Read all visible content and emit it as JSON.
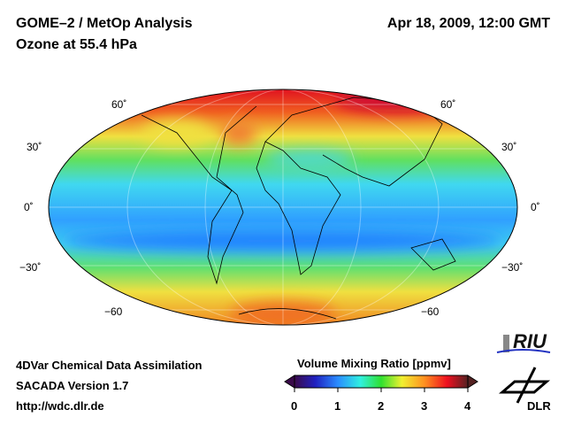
{
  "header": {
    "title": "GOME–2 / MetOp Analysis",
    "subtitle": "Ozone at 55.4 hPa",
    "datetime": "Apr 18, 2009, 12:00 GMT"
  },
  "map": {
    "projection": "Mollweide",
    "lat_labels": {
      "n60": "60˚",
      "n30": "30˚",
      "eq": "0˚",
      "s30": "−30˚",
      "s60": "−60"
    }
  },
  "footer": {
    "line1": "4DVar Chemical Data Assimilation",
    "line2": "SACADA Version 1.7",
    "url": "http://wdc.dlr.de"
  },
  "colorbar": {
    "title": "Volume Mixing Ratio [ppmv]",
    "ticks": [
      "0",
      "1",
      "2",
      "3",
      "4"
    ],
    "min": 0,
    "max": 4,
    "colors": [
      "#3a0a4a",
      "#2020c0",
      "#2a8cff",
      "#30f0e0",
      "#30e030",
      "#f0f030",
      "#ff9020",
      "#ee1020",
      "#552222"
    ]
  },
  "logos": {
    "riu": "RIU",
    "dlr": "DLR"
  }
}
